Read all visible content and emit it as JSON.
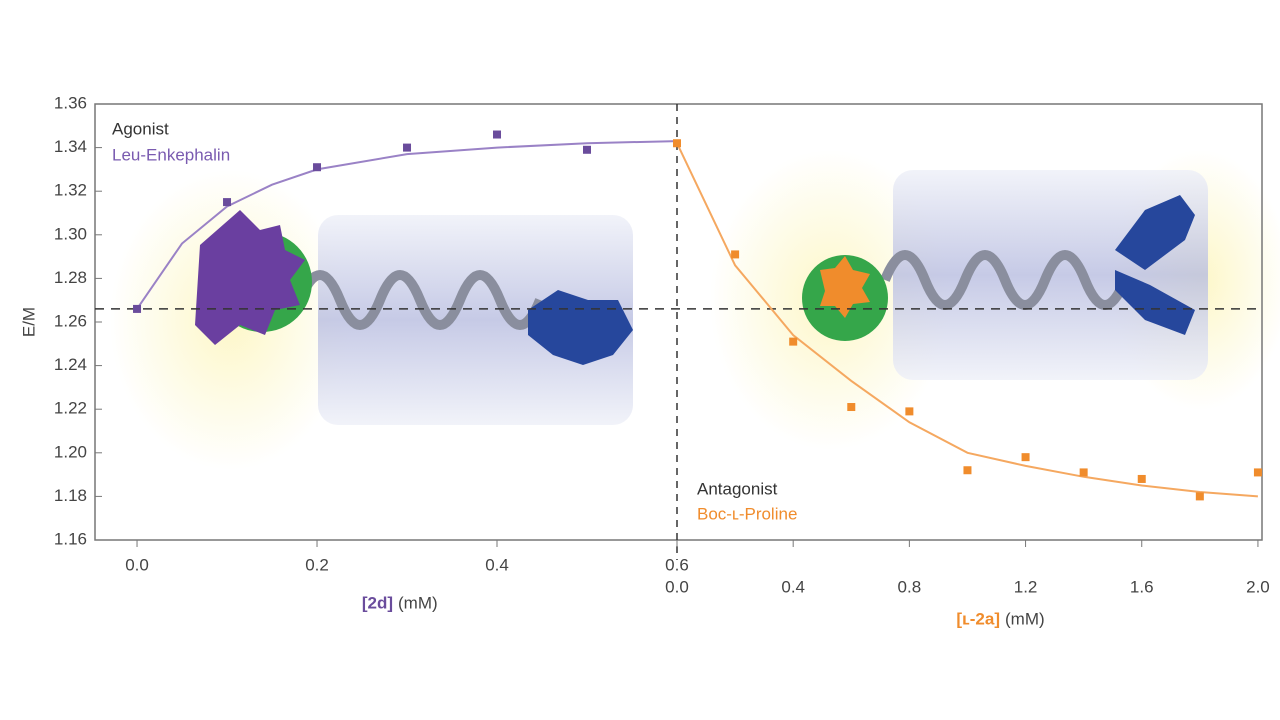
{
  "chart_data": [
    {
      "type": "scatter",
      "ylabel": "E/M",
      "ylim": [
        1.16,
        1.36
      ],
      "yticks": [
        1.16,
        1.18,
        {
          "value": 1.2,
          "label": "1.20"
        },
        1.22,
        1.24,
        1.26,
        1.28,
        {
          "value": 1.3,
          "label": "1.30"
        },
        1.32,
        1.34,
        1.36
      ],
      "xlim": [
        -0.0467,
        0.6
      ],
      "xticks": [
        {
          "value": 0,
          "label": "0.0"
        },
        0.2,
        0.4,
        0.6
      ],
      "xlabel_compound": "[2d]",
      "xlabel_unit": "(mM)",
      "annotation_role": "Agonist",
      "annotation_ligand": "Leu-Enkephalin",
      "reference_line": 1.266,
      "points": {
        "color": "#6a4c9c",
        "x": [
          0,
          0.1,
          0.2,
          0.3,
          0.4,
          0.5
        ],
        "values": [
          1.266,
          1.315,
          1.331,
          1.34,
          1.346,
          1.339
        ]
      },
      "fit": {
        "color": "#9a82c6",
        "x": [
          0,
          0.05,
          0.1,
          0.15,
          0.2,
          0.3,
          0.4,
          0.5,
          0.6
        ],
        "values": [
          1.266,
          1.296,
          1.313,
          1.323,
          1.33,
          1.337,
          1.34,
          1.342,
          1.343
        ]
      }
    },
    {
      "type": "scatter",
      "xlim": [
        0,
        2.014
      ],
      "xticks": [
        {
          "value": 0,
          "label": "0.0"
        },
        0.4,
        0.8,
        1.2,
        1.6,
        {
          "value": 2,
          "label": "2.0"
        }
      ],
      "xlabel_compound": "[ʟ-2a]",
      "xlabel_unit": "(mM)",
      "annotation_role": "Antagonist",
      "annotation_ligand": "Boc-ʟ-Proline",
      "points": {
        "color": "#f08c2c",
        "x": [
          0,
          0.2,
          0.4,
          0.6,
          0.8,
          1.0,
          1.2,
          1.4,
          1.6,
          1.8,
          2.0
        ],
        "values": [
          1.342,
          1.291,
          1.251,
          1.221,
          1.219,
          1.192,
          1.198,
          1.191,
          1.188,
          1.18,
          1.191
        ]
      },
      "fit": {
        "color": "#f5a860",
        "x": [
          0,
          0.2,
          0.4,
          0.6,
          0.8,
          1.0,
          1.2,
          1.4,
          1.6,
          1.8,
          2.0
        ],
        "values": [
          1.342,
          1.286,
          1.254,
          1.233,
          1.214,
          1.2,
          1.194,
          1.189,
          1.185,
          1.182,
          1.18
        ]
      }
    }
  ]
}
